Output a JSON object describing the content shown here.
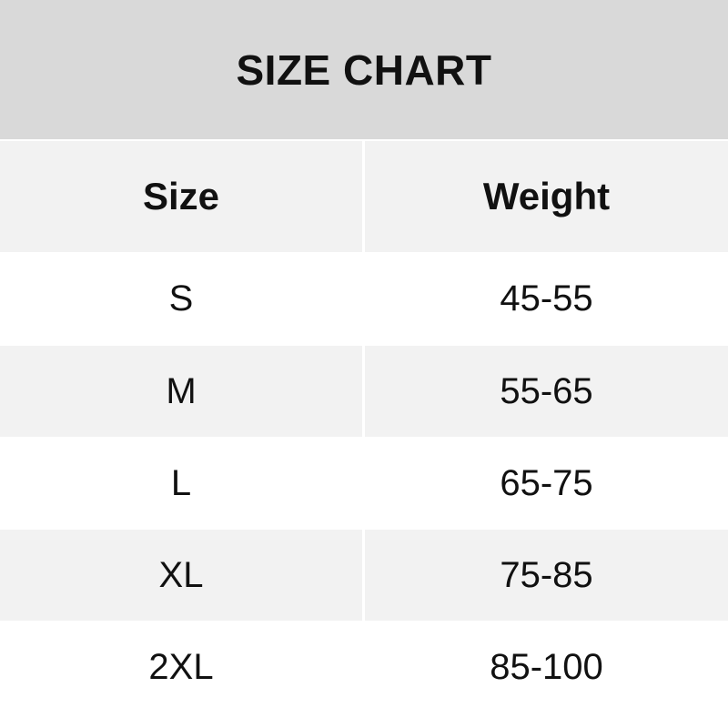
{
  "title": "SIZE CHART",
  "columns": [
    "Size",
    "Weight"
  ],
  "rows": [
    {
      "size": "S",
      "weight": "45-55"
    },
    {
      "size": "M",
      "weight": "55-65"
    },
    {
      "size": "L",
      "weight": "65-75"
    },
    {
      "size": "XL",
      "weight": "75-85"
    },
    {
      "size": "2XL",
      "weight": "85-100"
    }
  ],
  "colors": {
    "title_bg": "#d9d9d9",
    "shaded_row": "#f2f2f2",
    "row": "#ffffff"
  }
}
